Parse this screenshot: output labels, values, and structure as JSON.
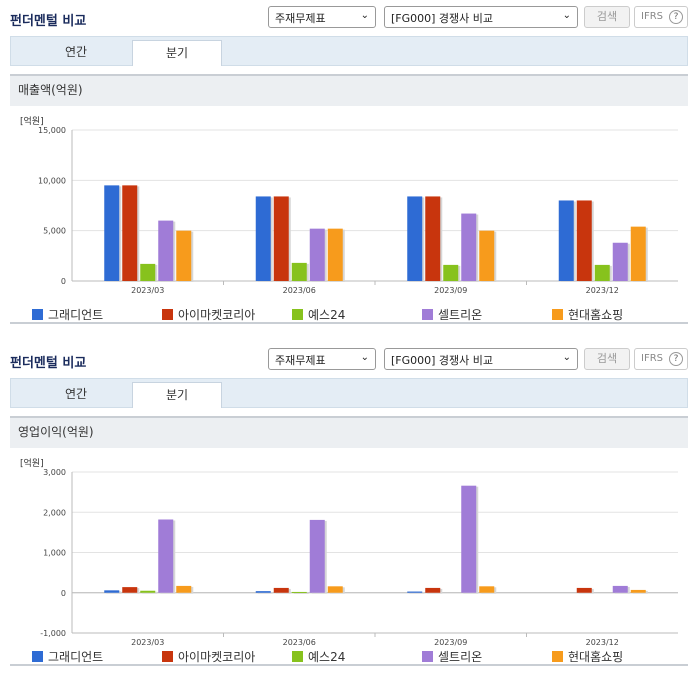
{
  "header": {
    "title": "펀더멘털 비교",
    "select_theme": "주재무제표",
    "select_group": "[FG000] 경쟁사 비교",
    "search_label": "검색",
    "ifrs_label": "IFRS",
    "help_icon": "?"
  },
  "tabs": [
    "연간",
    "분기"
  ],
  "colors": [
    "#2e6bd4",
    "#c8350d",
    "#87c21d",
    "#a07cd7",
    "#f79b1c"
  ],
  "legend": [
    "그래디언트",
    "아이마켓코리아",
    "예스24",
    "셀트리온",
    "현대홈쇼핑"
  ],
  "chart_data": [
    {
      "type": "bar",
      "title": "매출액(억원)",
      "unit_label": "[억원]",
      "categories": [
        "2023/03",
        "2023/06",
        "2023/09",
        "2023/12"
      ],
      "ylim": [
        0,
        15000
      ],
      "yticks": [
        "0",
        "5,000",
        "10,000",
        "15,000"
      ],
      "series": [
        {
          "name": "그래디언트",
          "values": [
            9500,
            8400,
            8400,
            8000
          ]
        },
        {
          "name": "아이마켓코리아",
          "values": [
            9500,
            8400,
            8400,
            8000
          ]
        },
        {
          "name": "예스24",
          "values": [
            1700,
            1800,
            1600,
            1600
          ]
        },
        {
          "name": "셀트리온",
          "values": [
            6000,
            5200,
            6700,
            3800
          ]
        },
        {
          "name": "현대홈쇼핑",
          "values": [
            5000,
            5200,
            5000,
            5400
          ]
        }
      ]
    },
    {
      "type": "bar",
      "title": "영업이익(억원)",
      "unit_label": "[억원]",
      "categories": [
        "2023/03",
        "2023/06",
        "2023/09",
        "2023/12"
      ],
      "ylim": [
        -1000,
        3000
      ],
      "yticks": [
        "-1,000",
        "0",
        "1,000",
        "2,000",
        "3,000"
      ],
      "series": [
        {
          "name": "그래디언트",
          "values": [
            60,
            40,
            30,
            0
          ]
        },
        {
          "name": "아이마켓코리아",
          "values": [
            140,
            120,
            120,
            120
          ]
        },
        {
          "name": "예스24",
          "values": [
            50,
            20,
            0,
            0
          ]
        },
        {
          "name": "셀트리온",
          "values": [
            1820,
            1810,
            2660,
            170
          ]
        },
        {
          "name": "현대홈쇼핑",
          "values": [
            170,
            160,
            160,
            70
          ]
        }
      ]
    }
  ]
}
